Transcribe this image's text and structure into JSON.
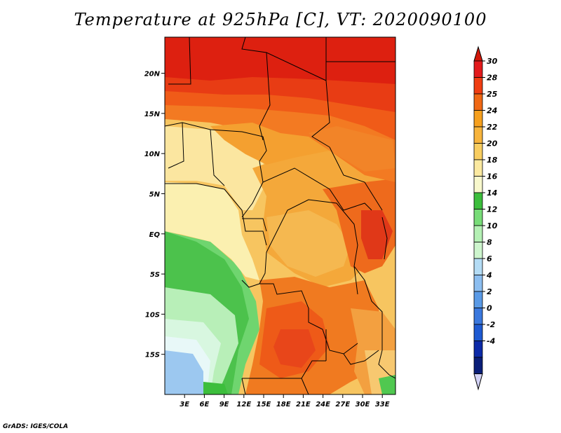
{
  "chart_data": {
    "type": "heatmap",
    "title": "Temperature at 925hPa [C], VT: 2020090100",
    "variable": "Temperature",
    "units": "C",
    "level": "925hPa",
    "valid_time": "2020090100",
    "xlim": [
      0,
      35
    ],
    "ylim": [
      -20,
      24.5
    ],
    "x_ticks": [
      {
        "value": 3,
        "label": "3E"
      },
      {
        "value": 6,
        "label": "6E"
      },
      {
        "value": 9,
        "label": "9E"
      },
      {
        "value": 12,
        "label": "12E"
      },
      {
        "value": 15,
        "label": "15E"
      },
      {
        "value": 18,
        "label": "18E"
      },
      {
        "value": 21,
        "label": "21E"
      },
      {
        "value": 24,
        "label": "24E"
      },
      {
        "value": 27,
        "label": "27E"
      },
      {
        "value": 30,
        "label": "30E"
      },
      {
        "value": 33,
        "label": "33E"
      }
    ],
    "y_ticks": [
      {
        "value": 20,
        "label": "20N"
      },
      {
        "value": 15,
        "label": "15N"
      },
      {
        "value": 10,
        "label": "10N"
      },
      {
        "value": 5,
        "label": "5N"
      },
      {
        "value": 0,
        "label": "EQ"
      },
      {
        "value": -5,
        "label": "5S"
      },
      {
        "value": -10,
        "label": "10S"
      },
      {
        "value": -15,
        "label": "15S"
      }
    ],
    "colorbar": {
      "levels": [
        "30",
        "28",
        "25",
        "24",
        "22",
        "20",
        "18",
        "16",
        "14",
        "12",
        "10",
        "8",
        "6",
        "4",
        "2",
        "0",
        "-2",
        "-4"
      ],
      "colors": [
        "#e31a1c",
        "#f03d12",
        "#f06814",
        "#f6a01e",
        "#f7b43c",
        "#f8cd60",
        "#fbe9a0",
        "#f8f8cc",
        "#3cbe3c",
        "#78dc78",
        "#b4f0b4",
        "#cdf5cd",
        "#b4dcf5",
        "#8cbef0",
        "#5a9ae6",
        "#3a78de",
        "#1e5ad2",
        "#0c2aa8",
        "#0a1e78"
      ],
      "overflow_high_color": "#d2180a",
      "underflow_low_color": "#d2d2f5"
    }
  },
  "footer": {
    "credit": "GrADS: IGES/COLA"
  }
}
